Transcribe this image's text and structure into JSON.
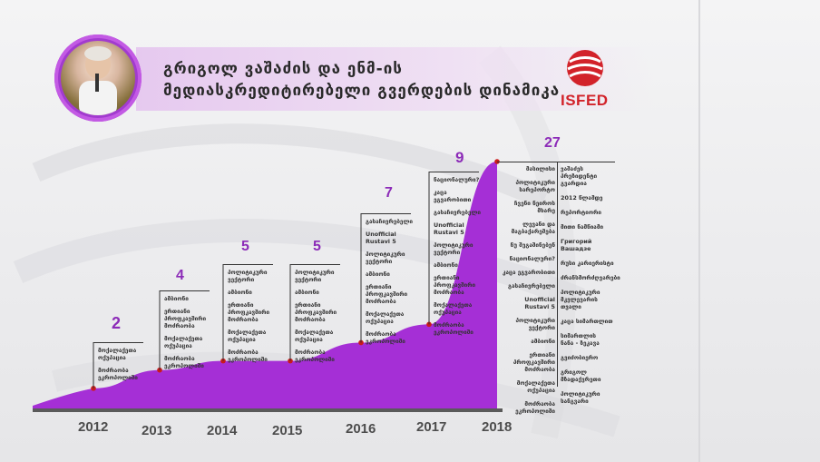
{
  "header": {
    "title_line1": "გრიგოლ ვაშაძის და ენმ-ის",
    "title_line2": "მედიასკრედიტირებელი გვერდების დინამიკა",
    "logo_text": "ISFED"
  },
  "colors": {
    "accent": "#a52fd6",
    "value_text": "#8c2bb8",
    "marker": "#cc1a1a",
    "baseline": "#5a5a5a",
    "logo_red": "#d2232a"
  },
  "chart_data": {
    "type": "area",
    "x": [
      "2012",
      "2013",
      "2014",
      "2015",
      "2016",
      "2017",
      "2018"
    ],
    "values": [
      2,
      4,
      5,
      5,
      7,
      9,
      27
    ],
    "labels": [
      [
        "მოქალაქეთა\nოქუპაცია",
        "მოძრაობა\nეკროპოლიში"
      ],
      [
        "ამბიონი",
        "ერთიანი\nპროფკავშირი\nმოძრაობა",
        "მოქალაქეთა\nოქუპაცია",
        "მოძრაობა\nეკროპოლიში"
      ],
      [
        "პოლიტიკური\nვექტორი",
        "ამბიონი",
        "ერთიანი\nპროფკავშირი\nმოძრაობა",
        "მოქალაქეთა\nოქუპაცია",
        "მოძრაობა\nეკროპოლიში"
      ],
      [
        "პოლიტიკური\nვექტორი",
        "ამბიონი",
        "ერთიანი\nპროფკავშირი\nმოძრაობა",
        "მოქალაქეთა\nოქუპაცია",
        "მოძრაობა\nეკროპოლიში"
      ],
      [
        "გასაჩივრებელი",
        "Unofficial Rustavi 5",
        "პოლიტიკური\nვექტორი",
        "ამბიონი",
        "ერთიანი\nპროფკავშირი\nმოძრაობა",
        "მოქალაქეთა\nოქუპაცია",
        "მოძრაობა\nეკროპოლიში"
      ],
      [
        "ნაციონალური?",
        "კაცა ეგვარობითი",
        "გასაჩივრებელი",
        "Unofficial Rustavi 5",
        "პოლიტიკური\nვექტორი",
        "ამბიონი",
        "ერთიანი\nპროფკავშირი\nმოძრაობა",
        "მოქალაქეთა\nოქუპაცია",
        "მოძრაობა\nეკროპოლიში"
      ],
      [
        "მასილისი",
        "პოლიტიკური\nსარეპორტო",
        "ჩვენი ნეიროს\nმხარე",
        "ლევანი და\nმაგბაქარეშება",
        "ნუ შეგაშინებენ",
        "ნაციონალური?",
        "კაცა ეგვარობითი",
        "გასაჩივრებელი",
        "Unofficial Rustavi 5",
        "პოლიტიკური\nვექტორი",
        "ამბიონი",
        "ერთიანი\nპროფკავშირი\nმოძრაობა",
        "მოქალაქეთა\nოქუპაცია",
        "მოძრაობა\nეკროპოლიში",
        "ვაშაძეს\nპრეზიდენტი\nგვარდია",
        "2012 წლამდე",
        "რეპორტიორი",
        "მითი ნამწიამი",
        "Григорий Вашадзе",
        "რუსი კარიერისტი",
        "ძრანსმორძღვარები",
        "პოლიტიკური\nმკვლევარის\nთვალი",
        "კაცა სიმართლით",
        "სიმართლის\nნანა - ზეკავა",
        "გვიძობიერო",
        "გრიგოლ\nმზადაქვრეთი",
        "პოლიტიკური\nსანგვარი"
      ]
    ],
    "ylim": [
      0,
      27
    ]
  }
}
